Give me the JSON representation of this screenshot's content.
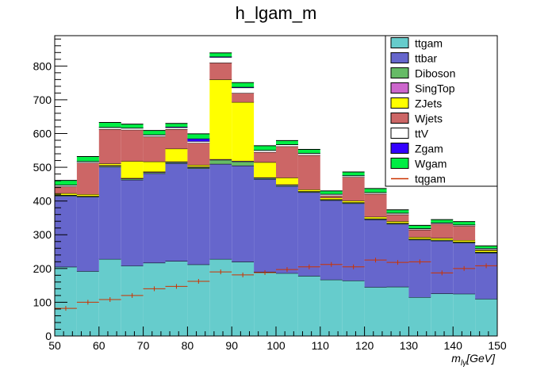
{
  "chart_data": {
    "type": "bar",
    "title": "h_lgam_m",
    "xlabel": "m_{lγ}[GeV]",
    "ylabel": "",
    "xlim": [
      50,
      150
    ],
    "ylim": [
      0,
      890
    ],
    "stacked": true,
    "x_ticks": [
      "50",
      "60",
      "70",
      "80",
      "90",
      "100",
      "110",
      "120",
      "130",
      "140",
      "150"
    ],
    "y_ticks": [
      "0",
      "100",
      "200",
      "300",
      "400",
      "500",
      "600",
      "700",
      "800"
    ],
    "bin_edges": [
      50,
      55,
      60,
      65,
      70,
      75,
      80,
      85,
      90,
      95,
      100,
      105,
      110,
      115,
      120,
      125,
      130,
      135,
      140,
      145,
      150
    ],
    "legend_position": "top-right",
    "series": [
      {
        "name": "ttgam",
        "color": "#66cccc",
        "values": [
          205,
          192,
          228,
          208,
          217,
          222,
          212,
          228,
          220,
          190,
          186,
          178,
          167,
          164,
          145,
          146,
          115,
          126,
          125,
          110
        ]
      },
      {
        "name": "ttbar",
        "color": "#6666cc",
        "values": [
          210,
          220,
          273,
          255,
          265,
          290,
          285,
          282,
          285,
          275,
          258,
          248,
          235,
          229,
          200,
          186,
          170,
          156,
          151,
          136
        ]
      },
      {
        "name": "Diboson",
        "color": "#66bb66",
        "values": [
          2,
          2,
          3,
          3,
          3,
          3,
          3,
          12,
          12,
          3,
          3,
          2,
          2,
          2,
          2,
          2,
          2,
          2,
          2,
          2
        ]
      },
      {
        "name": "SingTop",
        "color": "#cc66cc",
        "values": [
          1,
          1,
          2,
          2,
          2,
          2,
          2,
          2,
          2,
          2,
          2,
          1,
          1,
          1,
          1,
          1,
          1,
          1,
          1,
          1
        ]
      },
      {
        "name": "ZJets",
        "color": "#ffff00",
        "values": [
          5,
          5,
          5,
          50,
          30,
          38,
          5,
          236,
          174,
          45,
          20,
          5,
          5,
          5,
          5,
          5,
          5,
          5,
          5,
          5
        ]
      },
      {
        "name": "Wjets",
        "color": "#cc6666",
        "values": [
          20,
          93,
          102,
          93,
          74,
          58,
          65,
          50,
          27,
          30,
          93,
          102,
          6,
          70,
          68,
          20,
          22,
          42,
          42,
          2
        ]
      },
      {
        "name": "ttV",
        "color": "#ffffff",
        "values": [
          4,
          4,
          5,
          5,
          5,
          5,
          5,
          16,
          16,
          5,
          5,
          5,
          4,
          4,
          4,
          4,
          3,
          3,
          3,
          3
        ]
      },
      {
        "name": "Zgam",
        "color": "#3300ff",
        "values": [
          1,
          1,
          1,
          1,
          1,
          2,
          8,
          2,
          2,
          1,
          1,
          1,
          1,
          1,
          1,
          1,
          1,
          1,
          1,
          1
        ]
      },
      {
        "name": "Wgam",
        "color": "#00ee44",
        "values": [
          13,
          14,
          14,
          11,
          12,
          10,
          14,
          11,
          13,
          13,
          11,
          11,
          9,
          10,
          11,
          9,
          9,
          9,
          9,
          7
        ]
      }
    ],
    "overlay": {
      "name": "tqgam",
      "color": "#cc3300",
      "values": [
        82,
        100,
        108,
        120,
        140,
        147,
        162,
        190,
        181,
        188,
        197,
        205,
        212,
        205,
        225,
        218,
        220,
        187,
        200,
        208
      ]
    }
  }
}
